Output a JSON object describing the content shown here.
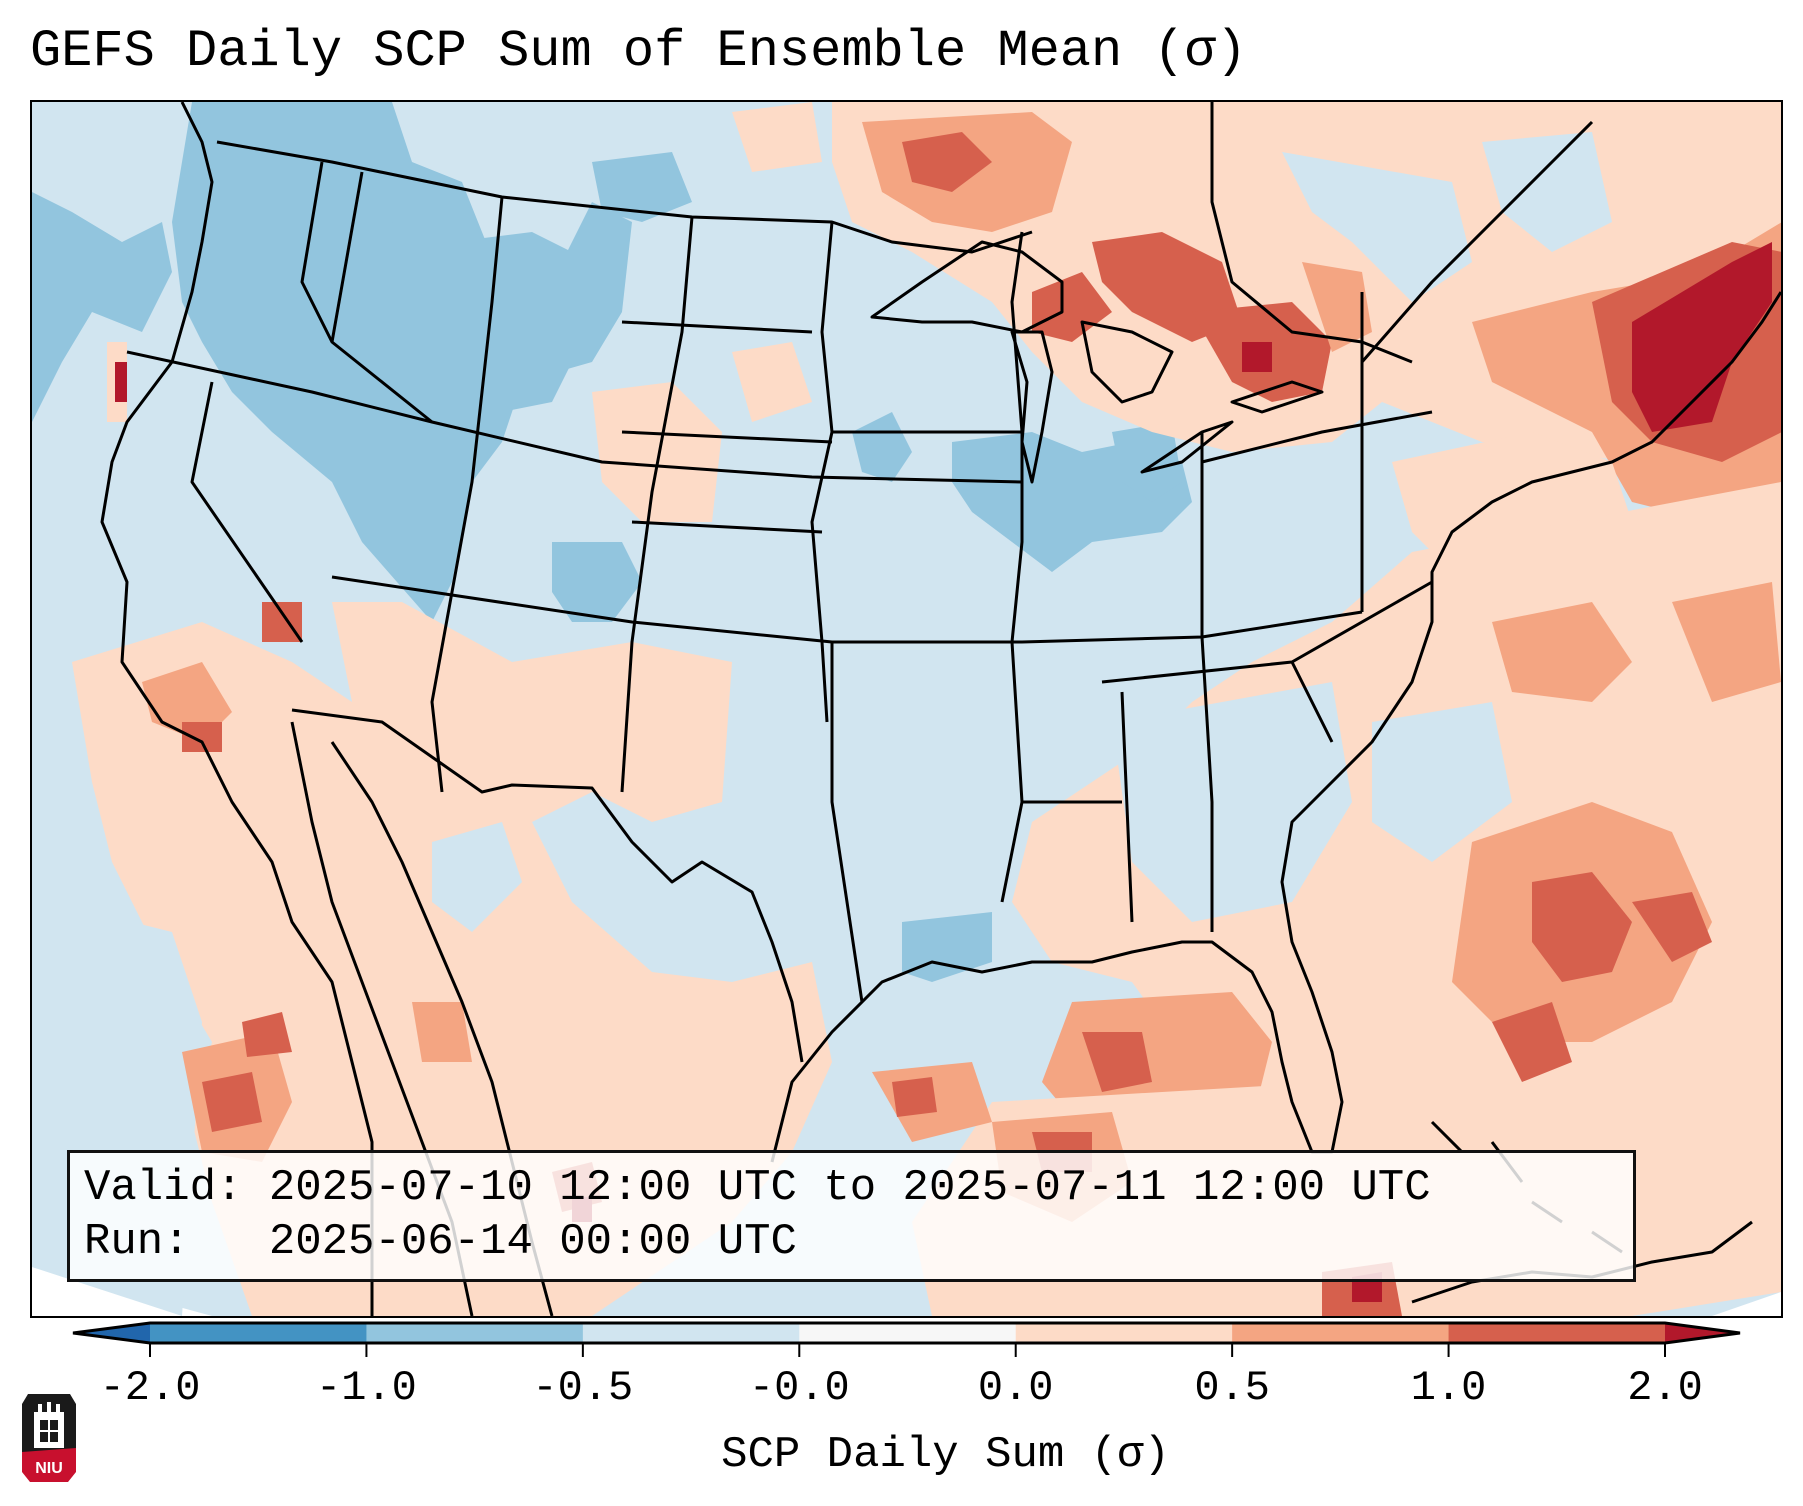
{
  "title": "GEFS Daily SCP Sum of Ensemble Mean (σ)",
  "info_box": {
    "valid_line": "Valid: 2025-07-10 12:00 UTC to 2025-07-11 12:00 UTC",
    "run_line": "Run:   2025-06-14 00:00 UTC"
  },
  "colorbar": {
    "label": "SCP Daily Sum (σ)",
    "ticks": [
      "-2.0",
      "-1.0",
      "-0.5",
      "-0.0",
      "0.0",
      "0.5",
      "1.0",
      "2.0"
    ],
    "bins": [
      {
        "range": "< -2.0",
        "color": "#2166ac"
      },
      {
        "range": "-2.0 to -1.0",
        "color": "#4393c3"
      },
      {
        "range": "-1.0 to -0.5",
        "color": "#92c5de"
      },
      {
        "range": "-0.5 to -0.0",
        "color": "#d1e5f0"
      },
      {
        "range": "-0.0 to 0.0",
        "color": "#f7f7f7"
      },
      {
        "range": "0.0 to 0.5",
        "color": "#fddbc7"
      },
      {
        "range": "0.5 to 1.0",
        "color": "#f4a582"
      },
      {
        "range": "1.0 to 2.0",
        "color": "#d6604d"
      },
      {
        "range": "> 2.0",
        "color": "#b2182b"
      }
    ],
    "extend": "both"
  },
  "map": {
    "region": "Contiguous United States",
    "projection": "Lambert Conformal",
    "variable": "SCP daily sum standardized anomaly",
    "notable_features": [
      "Negative anomalies (blue) over Pacific Northwest, Idaho, Montana",
      "Negative anomalies over Iowa / Illinois and Nebraska",
      "Positive anomalies (red) over Great Lakes and Ontario",
      "Strongest positive anomalies (> 2.0) over Maine / Gulf of Maine",
      "Positive anomalies over Gulf of Mexico, Florida and western Atlantic",
      "Positive anomalies over Southwest and northwest Mexico"
    ]
  },
  "logo": {
    "text": "NIU",
    "colors": {
      "top": "#1a1a1a",
      "bottom": "#c8102e"
    }
  }
}
